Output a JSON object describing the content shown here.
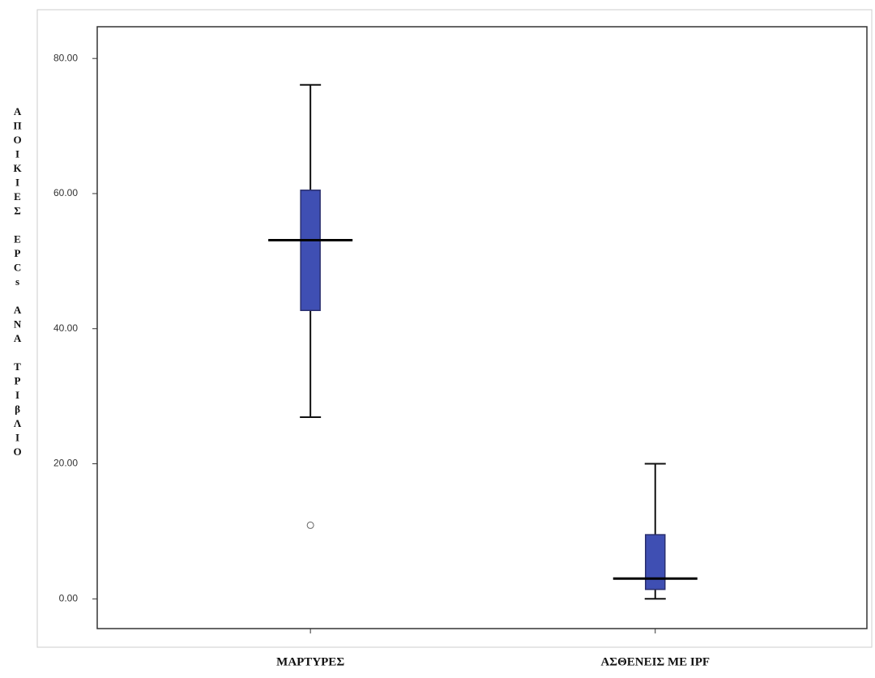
{
  "chart_data": {
    "type": "box",
    "y_label": "ΑΠΟΙΚΙΕΣ EPCs ΑΝΑ ΤΡΙβΛΙΟ",
    "categories": [
      "ΜΑΡΤΥΡΕΣ",
      "ΑΣΘΕΝΕΙΣ ΜΕ IPF"
    ],
    "min": [
      26.9,
      0
    ],
    "q1": [
      42.7,
      1.4
    ],
    "median": [
      53.1,
      3.0
    ],
    "q3": [
      60.5,
      9.5
    ],
    "max": [
      76.1,
      20.0
    ],
    "outliers": [
      [
        10.9
      ],
      []
    ],
    "color": "#3f4fb3",
    "ylim": [
      -4.4,
      84.7
    ],
    "yticks": [
      {
        "value": 0,
        "label": "0.00"
      },
      {
        "value": 20,
        "label": "20.00"
      },
      {
        "value": 40,
        "label": "40.00"
      },
      {
        "value": 60,
        "label": "60.00"
      },
      {
        "value": 80,
        "label": "80.00"
      }
    ]
  }
}
